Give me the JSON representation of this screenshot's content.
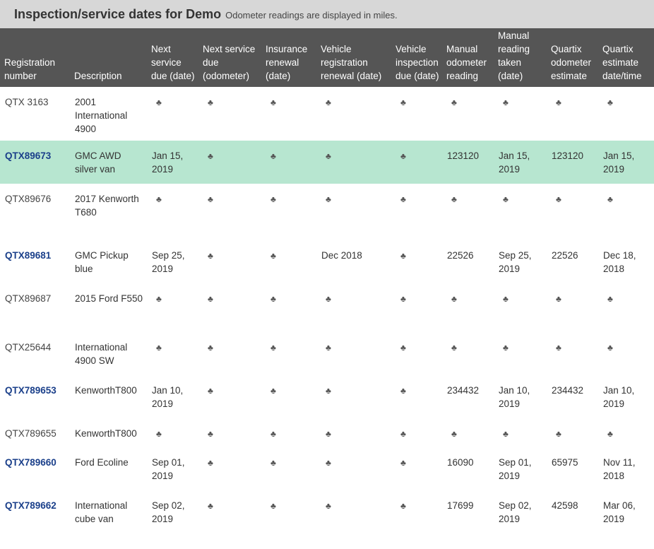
{
  "header": {
    "title": "Inspection/service dates for Demo",
    "subtitle": "Odometer readings are displayed in miles."
  },
  "columns": [
    "Registration number",
    "Description",
    "Next service due (date)",
    "Next service due (odometer)",
    "Insurance renewal (date)",
    "Vehicle registration renewal (date)",
    "Vehicle inspection due (date)",
    "Manual odometer reading",
    "Manual reading taken (date)",
    "Quartix odometer estimate",
    "Quartix estimate date/time"
  ],
  "empty_glyph": "♣",
  "colors": {
    "header_bg": "#555555",
    "highlight_row": "#b7e6d0",
    "link": "#1a3f8a"
  },
  "rows": [
    {
      "reg": "QTX 3163",
      "link": false,
      "highlight": false,
      "desc": "2001 International 4900",
      "cells": [
        "",
        "",
        "",
        "",
        "",
        "",
        "",
        "",
        ""
      ]
    },
    {
      "reg": "QTX89673",
      "link": true,
      "highlight": true,
      "desc": "GMC AWD silver van",
      "cells": [
        "Jan 15, 2019",
        "",
        "",
        "",
        "",
        "123120",
        "Jan 15, 2019",
        "123120",
        "Jan 15, 2019"
      ]
    },
    {
      "reg": "QTX89676",
      "link": false,
      "highlight": false,
      "desc": "2017 Kenworth T680",
      "cells": [
        "",
        "",
        "",
        "",
        "",
        "",
        "",
        "",
        ""
      ]
    },
    {
      "reg": "QTX89681",
      "link": true,
      "highlight": false,
      "desc": "GMC Pickup blue",
      "cells": [
        "Sep 25, 2019",
        "",
        "",
        "Dec 2018",
        "",
        "22526",
        "Sep 25, 2019",
        "22526",
        "Dec 18, 2018"
      ]
    },
    {
      "reg": "QTX89687",
      "link": false,
      "highlight": false,
      "desc": "2015 Ford F550",
      "cells": [
        "",
        "",
        "",
        "",
        "",
        "",
        "",
        "",
        ""
      ]
    },
    {
      "reg": "QTX25644",
      "link": false,
      "highlight": false,
      "desc": "International 4900 SW",
      "cells": [
        "",
        "",
        "",
        "",
        "",
        "",
        "",
        "",
        ""
      ]
    },
    {
      "reg": "QTX789653",
      "link": true,
      "highlight": false,
      "desc": "KenworthT800",
      "cells": [
        "Jan 10, 2019",
        "",
        "",
        "",
        "",
        "234432",
        "Jan 10, 2019",
        "234432",
        "Jan 10, 2019"
      ]
    },
    {
      "reg": "QTX789655",
      "link": false,
      "highlight": false,
      "desc": "KenworthT800",
      "cells": [
        "",
        "",
        "",
        "",
        "",
        "",
        "",
        "",
        ""
      ]
    },
    {
      "reg": "QTX789660",
      "link": true,
      "highlight": false,
      "desc": "Ford Ecoline",
      "cells": [
        "Sep 01, 2019",
        "",
        "",
        "",
        "",
        "16090",
        "Sep 01, 2019",
        "65975",
        "Nov 11, 2018"
      ]
    },
    {
      "reg": "QTX789662",
      "link": true,
      "highlight": false,
      "desc": "International cube van",
      "cells": [
        "Sep 02, 2019",
        "",
        "",
        "",
        "",
        "17699",
        "Sep 02, 2019",
        "42598",
        "Mar 06, 2019"
      ]
    }
  ]
}
